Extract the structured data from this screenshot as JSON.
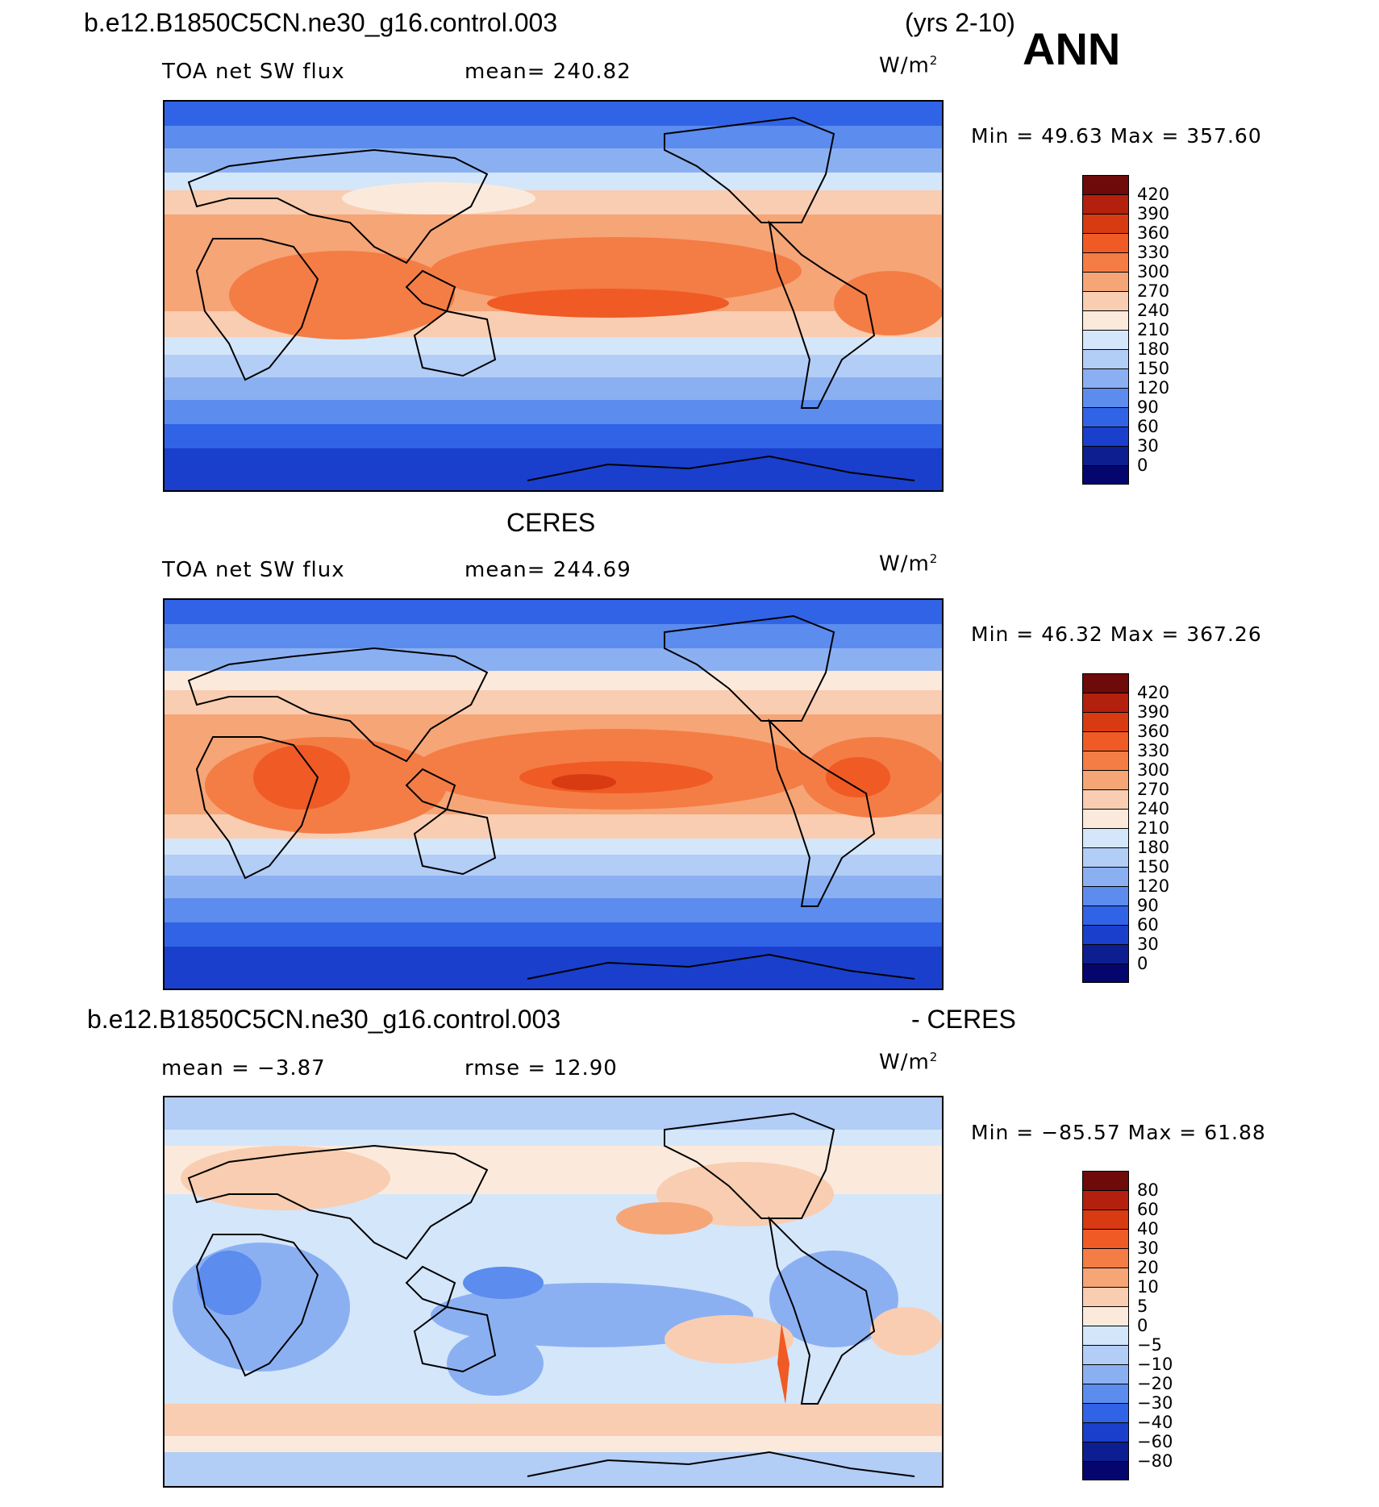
{
  "case_name": "b.e12.B1850C5CN.ne30_g16.control.003",
  "years": "(yrs 2-10)",
  "season": "ANN",
  "panels": [
    {
      "id": "model",
      "title": "",
      "left_label": "TOA net SW flux",
      "mid_label": "mean=  240.82",
      "units_base": "W/m",
      "units_exp": "2",
      "minmax": "Min =   49.63 Max =  357.60",
      "levels": [
        "420",
        "390",
        "360",
        "330",
        "300",
        "270",
        "240",
        "210",
        "180",
        "150",
        "120",
        "90",
        "60",
        "30",
        "0"
      ]
    },
    {
      "id": "obs",
      "title": "CERES",
      "left_label": "TOA net SW flux",
      "mid_label": "mean=  244.69",
      "units_base": "W/m",
      "units_exp": "2",
      "minmax": "Min =   46.32 Max =  367.26",
      "levels": [
        "420",
        "390",
        "360",
        "330",
        "300",
        "270",
        "240",
        "210",
        "180",
        "150",
        "120",
        "90",
        "60",
        "30",
        "0"
      ]
    },
    {
      "id": "diff",
      "title_left": "b.e12.B1850C5CN.ne30_g16.control.003",
      "title_right": "- CERES",
      "left_label": "mean =   −3.87",
      "mid_label": "rmse =   12.90",
      "units_base": "W/m",
      "units_exp": "2",
      "minmax": "Min = −85.57 Max =   61.88",
      "levels": [
        "80",
        "60",
        "40",
        "30",
        "20",
        "10",
        "5",
        "0",
        "−5",
        "−10",
        "−20",
        "−30",
        "−40",
        "−60",
        "−80"
      ]
    }
  ],
  "colors": {
    "scale": [
      "#6e0a0a",
      "#b3200e",
      "#d83a12",
      "#f05a25",
      "#f47d45",
      "#f6a577",
      "#f9cdb1",
      "#fbeadc",
      "#d4e6fa",
      "#b2cdf6",
      "#8bb0f2",
      "#5b8cee",
      "#3163e6",
      "#1a3fcc",
      "#0c1e90",
      "#05056e"
    ],
    "land": "#000000"
  }
}
